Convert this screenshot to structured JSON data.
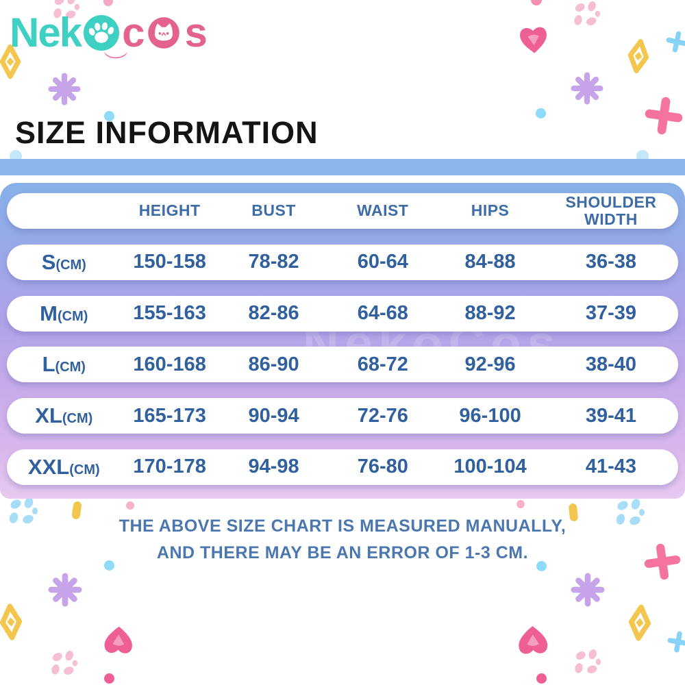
{
  "brand": {
    "logo_text_1": "Nek",
    "logo_text_2": "c",
    "logo_text_3": "s",
    "paw_icon": "white paw print in teal circle (letter o)",
    "cat_icon": "white cat face in pink circle (letter o)"
  },
  "heading": "SIZE INFORMATION",
  "chart_data": {
    "type": "table",
    "title": "SIZE INFORMATION",
    "columns": [
      "",
      "HEIGHT",
      "BUST",
      "WAIST",
      "HIPS",
      "SHOULDER WIDTH"
    ],
    "rows": [
      [
        "S(CM)",
        "150-158",
        "78-82",
        "60-64",
        "84-88",
        "36-38"
      ],
      [
        "M(CM)",
        "155-163",
        "82-86",
        "64-68",
        "88-92",
        "37-39"
      ],
      [
        "L(CM)",
        "160-168",
        "86-90",
        "68-72",
        "92-96",
        "38-40"
      ],
      [
        "XL(CM)",
        "165-173",
        "90-94",
        "72-76",
        "96-100",
        "39-41"
      ],
      [
        "XXL(CM)",
        "170-178",
        "94-98",
        "76-80",
        "100-104",
        "41-43"
      ]
    ],
    "unit": "cm"
  },
  "size_table": {
    "columns": [
      "HEIGHT",
      "BUST",
      "WAIST",
      "HIPS",
      "SHOULDER WIDTH"
    ],
    "rows": [
      {
        "size": "S",
        "unit": "(CM)",
        "values": [
          "150-158",
          "78-82",
          "60-64",
          "84-88",
          "36-38"
        ]
      },
      {
        "size": "M",
        "unit": "(CM)",
        "values": [
          "155-163",
          "82-86",
          "64-68",
          "88-92",
          "37-39"
        ]
      },
      {
        "size": "L",
        "unit": "(CM)",
        "values": [
          "160-168",
          "86-90",
          "68-72",
          "92-96",
          "38-40"
        ]
      },
      {
        "size": "XL",
        "unit": "(CM)",
        "values": [
          "165-173",
          "90-94",
          "72-76",
          "96-100",
          "39-41"
        ]
      },
      {
        "size": "XXL",
        "unit": "(CM)",
        "values": [
          "170-178",
          "94-98",
          "76-80",
          "100-104",
          "41-43"
        ]
      }
    ]
  },
  "watermark": "NekoCos",
  "note": {
    "line1": "THE ABOVE SIZE CHART IS MEASURED MANUALLY,",
    "line2": "AND THERE MAY BE AN ERROR OF 1-3 CM."
  },
  "colors": {
    "logo_teal": "#3ed0c2",
    "logo_pink": "#e4638e",
    "strip_blue": "#8db6ea",
    "gradient_top": "#87b0e9",
    "gradient_bottom": "#e8caf1",
    "header_text": "#3d6ca8",
    "value_text": "#31609e",
    "note_text": "#4b77ae",
    "deco_heart_pink": "#ee5f96",
    "deco_flower_pink": "#f6bed3",
    "deco_flower_blue": "#a8ddf8",
    "deco_yellow": "#f3c64f",
    "deco_purple": "#c7a4ea",
    "deco_plus_blue": "#86d3f7",
    "deco_cross_pink": "#f4739f"
  }
}
